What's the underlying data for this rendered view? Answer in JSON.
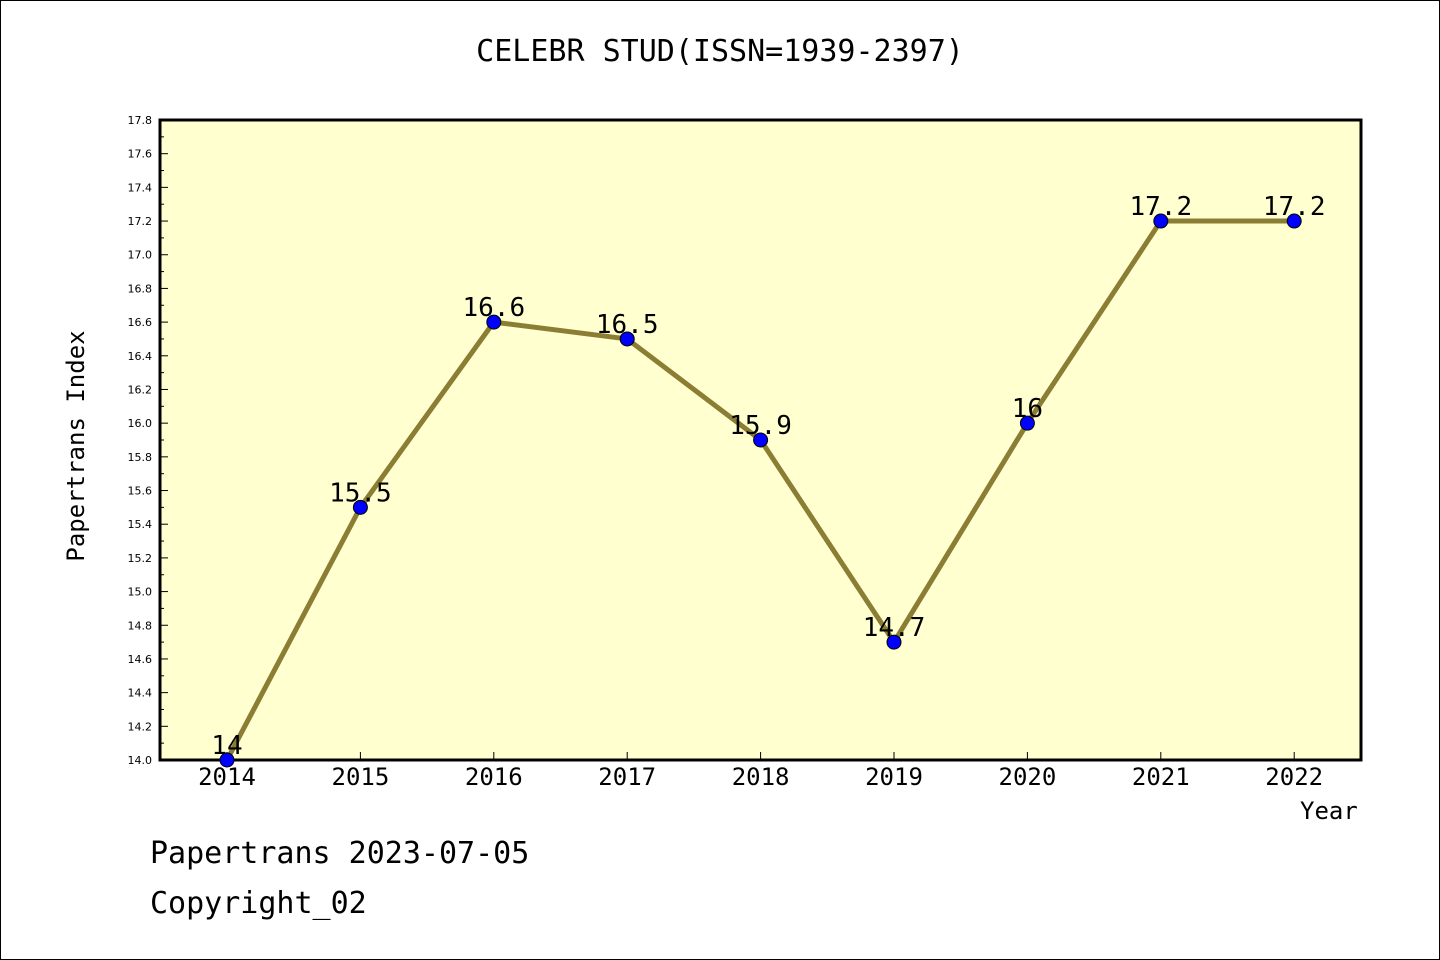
{
  "chart_data": {
    "type": "line",
    "title": "CELEBR STUD(ISSN=1939-2397)",
    "xlabel": "Year",
    "ylabel": "Papertrans Index",
    "categories": [
      "2014",
      "2015",
      "2016",
      "2017",
      "2018",
      "2019",
      "2020",
      "2021",
      "2022"
    ],
    "series": [
      {
        "values": [
          14,
          15.5,
          16.6,
          16.5,
          15.9,
          14.7,
          16,
          17.2,
          17.2
        ],
        "data_labels": [
          "14",
          "15.5",
          "16.6",
          "16.5",
          "15.9",
          "14.7",
          "16",
          "17.2",
          "17.2"
        ]
      }
    ],
    "ylim": [
      14.0,
      17.8
    ],
    "yticks": [
      "14.0",
      "14.2",
      "14.4",
      "14.6",
      "14.8",
      "15.0",
      "15.2",
      "15.4",
      "15.6",
      "15.8",
      "16.0",
      "16.2",
      "16.4",
      "16.6",
      "16.8",
      "17.0",
      "17.2",
      "17.4",
      "17.6",
      "17.8"
    ],
    "grid": false,
    "legend": "none",
    "colors": {
      "plot_background": "#ffffd0",
      "line": "#8b7d33",
      "marker": "#0000ff"
    }
  },
  "footer": {
    "line1": "Papertrans 2023-07-05",
    "line2": "Copyright_02"
  }
}
